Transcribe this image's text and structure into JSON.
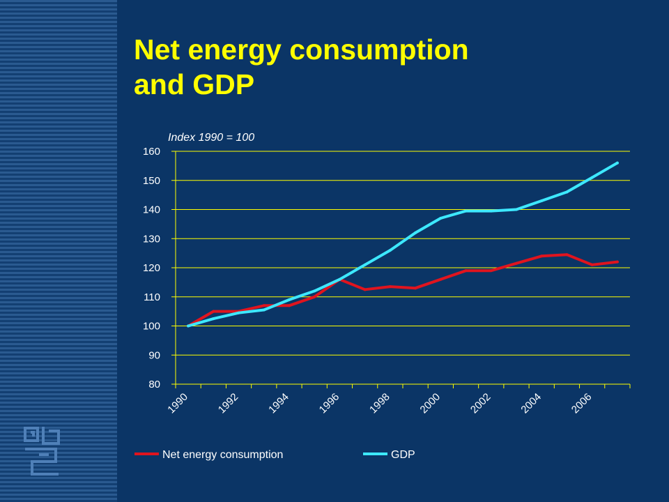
{
  "slide": {
    "title_line1": "Net energy consumption",
    "title_line2": "and GDP",
    "logo": "cbs-logo"
  },
  "colors": {
    "background": "#0b3566",
    "title": "#ffff00",
    "axis": "#ffff00",
    "text": "#ffffff",
    "energy": "#e0141e",
    "gdp": "#3de8ff"
  },
  "chart_data": {
    "type": "line",
    "subtitle": "Index 1990 = 100",
    "xlabel": "",
    "ylabel": "",
    "ylim": [
      80,
      160
    ],
    "yticks": [
      80,
      90,
      100,
      110,
      120,
      130,
      140,
      150,
      160
    ],
    "x": [
      1990,
      1991,
      1992,
      1993,
      1994,
      1995,
      1996,
      1997,
      1998,
      1999,
      2000,
      2001,
      2002,
      2003,
      2004,
      2005,
      2006,
      2007
    ],
    "xtick_labels": [
      "1990",
      "1992",
      "1994",
      "1996",
      "1998",
      "2000",
      "2002",
      "2004",
      "2006"
    ],
    "grid": "horizontal",
    "legend_position": "bottom",
    "series": [
      {
        "name": "Net energy consumption",
        "color": "#e0141e",
        "values": [
          100,
          105,
          105,
          107,
          107,
          110,
          116,
          112.5,
          113.5,
          113,
          116,
          119,
          119,
          121.5,
          124,
          124.5,
          121,
          122
        ]
      },
      {
        "name": "GDP",
        "color": "#3de8ff",
        "values": [
          100,
          102.5,
          104.5,
          105.5,
          109,
          112,
          116,
          121,
          126,
          132,
          137,
          139.5,
          139.5,
          140,
          143,
          146,
          151,
          156
        ]
      }
    ]
  }
}
